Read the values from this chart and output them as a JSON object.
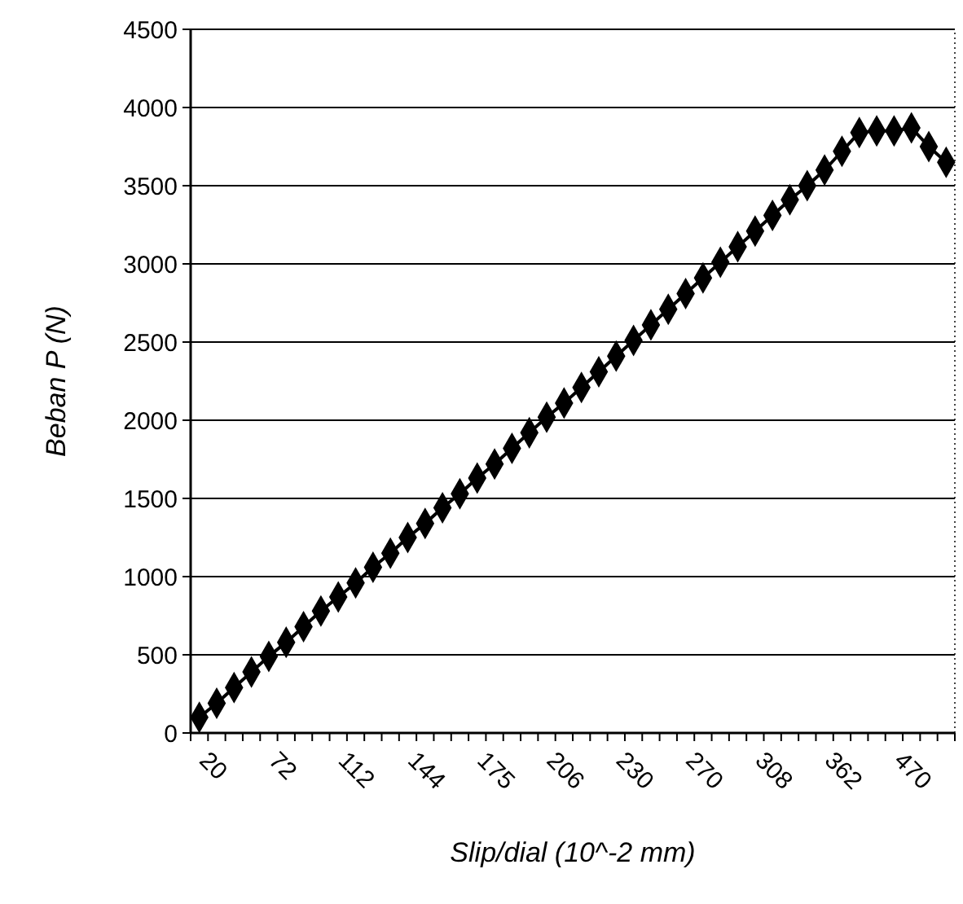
{
  "chart_data": {
    "type": "line",
    "xlabel": "Slip/dial (10^-2 mm)",
    "ylabel": "Beban P (N)",
    "categories": [
      "20",
      null,
      null,
      null,
      "72",
      null,
      null,
      null,
      "112",
      null,
      null,
      null,
      "144",
      null,
      null,
      null,
      "175",
      null,
      null,
      null,
      "206",
      null,
      null,
      null,
      "230",
      null,
      null,
      null,
      "270",
      null,
      null,
      null,
      "308",
      null,
      null,
      null,
      "362",
      null,
      null,
      null,
      "470",
      null,
      null,
      null
    ],
    "series": [
      {
        "color": "#000000",
        "values": [
          100,
          190,
          290,
          390,
          490,
          580,
          680,
          780,
          870,
          960,
          1060,
          1150,
          1250,
          1340,
          1440,
          1530,
          1630,
          1720,
          1820,
          1920,
          2020,
          2110,
          2210,
          2310,
          2410,
          2510,
          2610,
          2710,
          2810,
          2910,
          3010,
          3110,
          3210,
          3310,
          3410,
          3500,
          3600,
          3720,
          3840,
          3850,
          3850,
          3870,
          3750,
          3650
        ]
      }
    ],
    "ylim": [
      0,
      4500
    ],
    "yticks": [
      0,
      500,
      1000,
      1500,
      2000,
      2500,
      3000,
      3500,
      4000,
      4500
    ],
    "grid": "y",
    "marker": "diamond",
    "line_style": "solid"
  }
}
